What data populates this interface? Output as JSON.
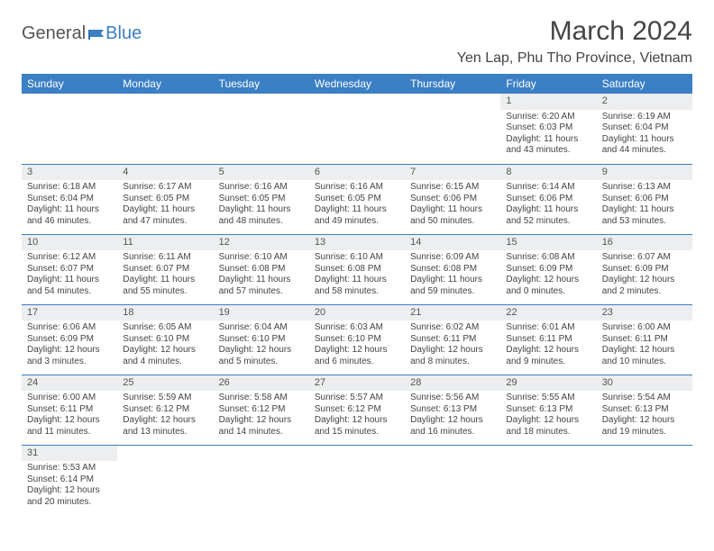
{
  "brand": {
    "part1": "General",
    "part2": "Blue"
  },
  "title": "March 2024",
  "location": "Yen Lap, Phu Tho Province, Vietnam",
  "colors": {
    "accent": "#3b7fc4",
    "header_bg": "#3b7fc4",
    "daynum_bg": "#eceeef",
    "text": "#444444",
    "background": "#ffffff"
  },
  "weekdays": [
    "Sunday",
    "Monday",
    "Tuesday",
    "Wednesday",
    "Thursday",
    "Friday",
    "Saturday"
  ],
  "weeks": [
    [
      {
        "n": "",
        "sr": "",
        "ss": "",
        "dl1": "",
        "dl2": ""
      },
      {
        "n": "",
        "sr": "",
        "ss": "",
        "dl1": "",
        "dl2": ""
      },
      {
        "n": "",
        "sr": "",
        "ss": "",
        "dl1": "",
        "dl2": ""
      },
      {
        "n": "",
        "sr": "",
        "ss": "",
        "dl1": "",
        "dl2": ""
      },
      {
        "n": "",
        "sr": "",
        "ss": "",
        "dl1": "",
        "dl2": ""
      },
      {
        "n": "1",
        "sr": "Sunrise: 6:20 AM",
        "ss": "Sunset: 6:03 PM",
        "dl1": "Daylight: 11 hours",
        "dl2": "and 43 minutes."
      },
      {
        "n": "2",
        "sr": "Sunrise: 6:19 AM",
        "ss": "Sunset: 6:04 PM",
        "dl1": "Daylight: 11 hours",
        "dl2": "and 44 minutes."
      }
    ],
    [
      {
        "n": "3",
        "sr": "Sunrise: 6:18 AM",
        "ss": "Sunset: 6:04 PM",
        "dl1": "Daylight: 11 hours",
        "dl2": "and 46 minutes."
      },
      {
        "n": "4",
        "sr": "Sunrise: 6:17 AM",
        "ss": "Sunset: 6:05 PM",
        "dl1": "Daylight: 11 hours",
        "dl2": "and 47 minutes."
      },
      {
        "n": "5",
        "sr": "Sunrise: 6:16 AM",
        "ss": "Sunset: 6:05 PM",
        "dl1": "Daylight: 11 hours",
        "dl2": "and 48 minutes."
      },
      {
        "n": "6",
        "sr": "Sunrise: 6:16 AM",
        "ss": "Sunset: 6:05 PM",
        "dl1": "Daylight: 11 hours",
        "dl2": "and 49 minutes."
      },
      {
        "n": "7",
        "sr": "Sunrise: 6:15 AM",
        "ss": "Sunset: 6:06 PM",
        "dl1": "Daylight: 11 hours",
        "dl2": "and 50 minutes."
      },
      {
        "n": "8",
        "sr": "Sunrise: 6:14 AM",
        "ss": "Sunset: 6:06 PM",
        "dl1": "Daylight: 11 hours",
        "dl2": "and 52 minutes."
      },
      {
        "n": "9",
        "sr": "Sunrise: 6:13 AM",
        "ss": "Sunset: 6:06 PM",
        "dl1": "Daylight: 11 hours",
        "dl2": "and 53 minutes."
      }
    ],
    [
      {
        "n": "10",
        "sr": "Sunrise: 6:12 AM",
        "ss": "Sunset: 6:07 PM",
        "dl1": "Daylight: 11 hours",
        "dl2": "and 54 minutes."
      },
      {
        "n": "11",
        "sr": "Sunrise: 6:11 AM",
        "ss": "Sunset: 6:07 PM",
        "dl1": "Daylight: 11 hours",
        "dl2": "and 55 minutes."
      },
      {
        "n": "12",
        "sr": "Sunrise: 6:10 AM",
        "ss": "Sunset: 6:08 PM",
        "dl1": "Daylight: 11 hours",
        "dl2": "and 57 minutes."
      },
      {
        "n": "13",
        "sr": "Sunrise: 6:10 AM",
        "ss": "Sunset: 6:08 PM",
        "dl1": "Daylight: 11 hours",
        "dl2": "and 58 minutes."
      },
      {
        "n": "14",
        "sr": "Sunrise: 6:09 AM",
        "ss": "Sunset: 6:08 PM",
        "dl1": "Daylight: 11 hours",
        "dl2": "and 59 minutes."
      },
      {
        "n": "15",
        "sr": "Sunrise: 6:08 AM",
        "ss": "Sunset: 6:09 PM",
        "dl1": "Daylight: 12 hours",
        "dl2": "and 0 minutes."
      },
      {
        "n": "16",
        "sr": "Sunrise: 6:07 AM",
        "ss": "Sunset: 6:09 PM",
        "dl1": "Daylight: 12 hours",
        "dl2": "and 2 minutes."
      }
    ],
    [
      {
        "n": "17",
        "sr": "Sunrise: 6:06 AM",
        "ss": "Sunset: 6:09 PM",
        "dl1": "Daylight: 12 hours",
        "dl2": "and 3 minutes."
      },
      {
        "n": "18",
        "sr": "Sunrise: 6:05 AM",
        "ss": "Sunset: 6:10 PM",
        "dl1": "Daylight: 12 hours",
        "dl2": "and 4 minutes."
      },
      {
        "n": "19",
        "sr": "Sunrise: 6:04 AM",
        "ss": "Sunset: 6:10 PM",
        "dl1": "Daylight: 12 hours",
        "dl2": "and 5 minutes."
      },
      {
        "n": "20",
        "sr": "Sunrise: 6:03 AM",
        "ss": "Sunset: 6:10 PM",
        "dl1": "Daylight: 12 hours",
        "dl2": "and 6 minutes."
      },
      {
        "n": "21",
        "sr": "Sunrise: 6:02 AM",
        "ss": "Sunset: 6:11 PM",
        "dl1": "Daylight: 12 hours",
        "dl2": "and 8 minutes."
      },
      {
        "n": "22",
        "sr": "Sunrise: 6:01 AM",
        "ss": "Sunset: 6:11 PM",
        "dl1": "Daylight: 12 hours",
        "dl2": "and 9 minutes."
      },
      {
        "n": "23",
        "sr": "Sunrise: 6:00 AM",
        "ss": "Sunset: 6:11 PM",
        "dl1": "Daylight: 12 hours",
        "dl2": "and 10 minutes."
      }
    ],
    [
      {
        "n": "24",
        "sr": "Sunrise: 6:00 AM",
        "ss": "Sunset: 6:11 PM",
        "dl1": "Daylight: 12 hours",
        "dl2": "and 11 minutes."
      },
      {
        "n": "25",
        "sr": "Sunrise: 5:59 AM",
        "ss": "Sunset: 6:12 PM",
        "dl1": "Daylight: 12 hours",
        "dl2": "and 13 minutes."
      },
      {
        "n": "26",
        "sr": "Sunrise: 5:58 AM",
        "ss": "Sunset: 6:12 PM",
        "dl1": "Daylight: 12 hours",
        "dl2": "and 14 minutes."
      },
      {
        "n": "27",
        "sr": "Sunrise: 5:57 AM",
        "ss": "Sunset: 6:12 PM",
        "dl1": "Daylight: 12 hours",
        "dl2": "and 15 minutes."
      },
      {
        "n": "28",
        "sr": "Sunrise: 5:56 AM",
        "ss": "Sunset: 6:13 PM",
        "dl1": "Daylight: 12 hours",
        "dl2": "and 16 minutes."
      },
      {
        "n": "29",
        "sr": "Sunrise: 5:55 AM",
        "ss": "Sunset: 6:13 PM",
        "dl1": "Daylight: 12 hours",
        "dl2": "and 18 minutes."
      },
      {
        "n": "30",
        "sr": "Sunrise: 5:54 AM",
        "ss": "Sunset: 6:13 PM",
        "dl1": "Daylight: 12 hours",
        "dl2": "and 19 minutes."
      }
    ],
    [
      {
        "n": "31",
        "sr": "Sunrise: 5:53 AM",
        "ss": "Sunset: 6:14 PM",
        "dl1": "Daylight: 12 hours",
        "dl2": "and 20 minutes."
      },
      {
        "n": "",
        "sr": "",
        "ss": "",
        "dl1": "",
        "dl2": ""
      },
      {
        "n": "",
        "sr": "",
        "ss": "",
        "dl1": "",
        "dl2": ""
      },
      {
        "n": "",
        "sr": "",
        "ss": "",
        "dl1": "",
        "dl2": ""
      },
      {
        "n": "",
        "sr": "",
        "ss": "",
        "dl1": "",
        "dl2": ""
      },
      {
        "n": "",
        "sr": "",
        "ss": "",
        "dl1": "",
        "dl2": ""
      },
      {
        "n": "",
        "sr": "",
        "ss": "",
        "dl1": "",
        "dl2": ""
      }
    ]
  ]
}
